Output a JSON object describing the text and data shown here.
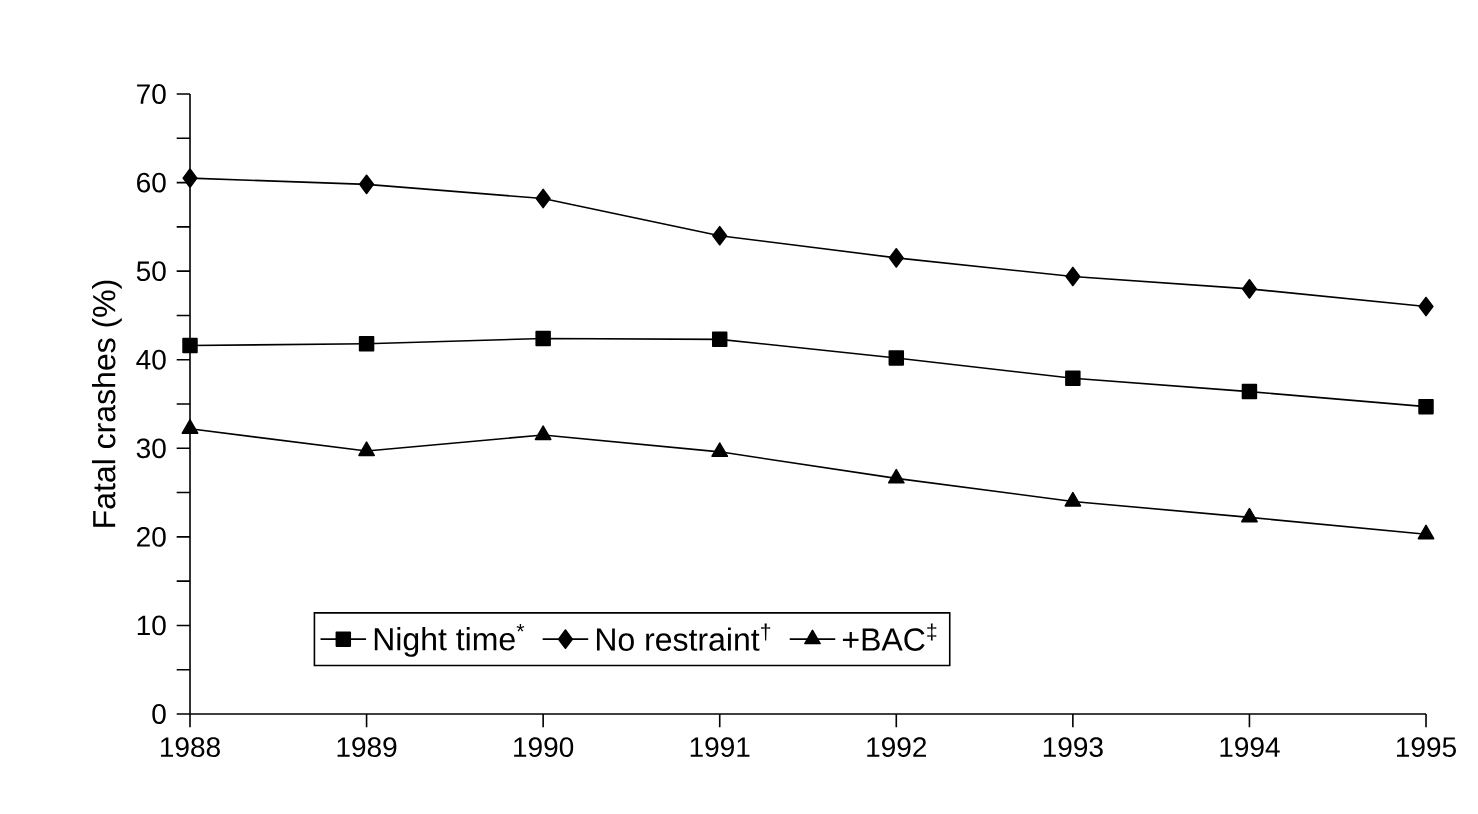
{
  "chart_data": {
    "type": "line",
    "ylabel": "Fatal crashes (%)",
    "x": [
      1988,
      1989,
      1990,
      1991,
      1992,
      1993,
      1994,
      1995
    ],
    "series": [
      {
        "name": "Night time$^{*}$",
        "color": "#000000",
        "marker": "square",
        "values": [
          41.6,
          41.8,
          42.4,
          42.3,
          40.2,
          37.9,
          36.4,
          34.7
        ]
      },
      {
        "name": "No restraint$^{†}$",
        "color": "#000000",
        "marker": "diamond",
        "values": [
          60.5,
          59.8,
          58.2,
          54.0,
          51.5,
          49.4,
          48.0,
          46.0
        ]
      },
      {
        "name": "+BAC$^{‡}$",
        "color": "#000000",
        "marker": "triangle",
        "values": [
          32.2,
          29.7,
          31.5,
          29.6,
          26.6,
          24.0,
          22.2,
          20.3
        ]
      }
    ],
    "xlim": [
      1988,
      1995
    ],
    "xticks": [
      1988,
      1989,
      1990,
      1991,
      1992,
      1993,
      1994,
      1995
    ],
    "ylim": [
      0,
      70
    ],
    "yticks": [
      0,
      10,
      20,
      30,
      40,
      50,
      60,
      70
    ],
    "grid": false,
    "legend": "bottom",
    "line_style": "solid"
  }
}
